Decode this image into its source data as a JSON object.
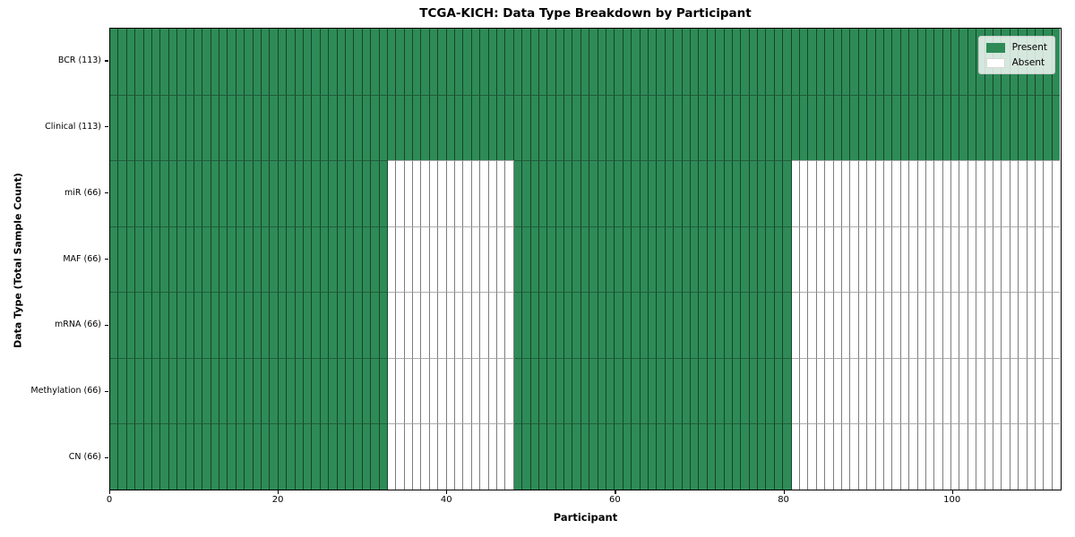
{
  "figure_title": "TCGA-KICH: Data Type Breakdown by Participant",
  "colors": {
    "present": "#2e8b57",
    "absent": "#ffffff",
    "grid_vertical": "rgba(0,0,0,0.50)",
    "grid_horizontal": "rgba(0,0,0,0.32)",
    "spine": "#000000",
    "legend_border": "#cccccc"
  },
  "chart_data": {
    "type": "heatmap",
    "title": "TCGA-KICH: Data Type Breakdown by Participant",
    "xlabel": "Participant",
    "ylabel": "Data Type (Total Sample Count)",
    "x_range": [
      0,
      113
    ],
    "x_ticks": [
      0,
      20,
      40,
      60,
      80,
      100
    ],
    "n_participants": 113,
    "grid": true,
    "legend_position": "upper right",
    "legend_entries": [
      {
        "label": "Present",
        "color": "#2e8b57"
      },
      {
        "label": "Absent",
        "color": "#ffffff"
      }
    ],
    "rows": [
      {
        "label": "BCR (113)",
        "data_type": "BCR",
        "total_samples": 113,
        "present_segments": [
          [
            0,
            113
          ]
        ]
      },
      {
        "label": "Clinical (113)",
        "data_type": "Clinical",
        "total_samples": 113,
        "present_segments": [
          [
            0,
            113
          ]
        ]
      },
      {
        "label": "miR (66)",
        "data_type": "miR",
        "total_samples": 66,
        "present_segments": [
          [
            0,
            33
          ],
          [
            48,
            81
          ]
        ]
      },
      {
        "label": "MAF (66)",
        "data_type": "MAF",
        "total_samples": 66,
        "present_segments": [
          [
            0,
            33
          ],
          [
            48,
            81
          ]
        ]
      },
      {
        "label": "mRNA (66)",
        "data_type": "mRNA",
        "total_samples": 66,
        "present_segments": [
          [
            0,
            33
          ],
          [
            48,
            81
          ]
        ]
      },
      {
        "label": "Methylation (66)",
        "data_type": "Methylation",
        "total_samples": 66,
        "present_segments": [
          [
            0,
            33
          ],
          [
            48,
            81
          ]
        ]
      },
      {
        "label": "CN (66)",
        "data_type": "CN",
        "total_samples": 66,
        "present_segments": [
          [
            0,
            33
          ],
          [
            48,
            81
          ]
        ]
      }
    ]
  }
}
